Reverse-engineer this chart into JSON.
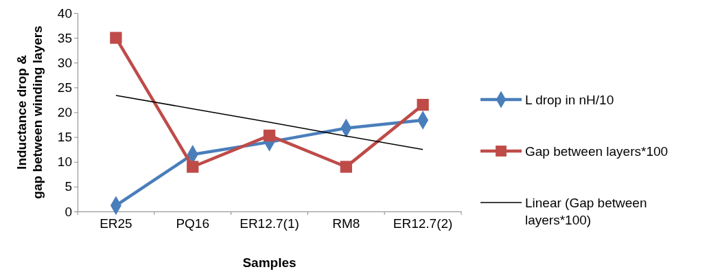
{
  "chart_data": {
    "type": "line",
    "xlabel": "Samples",
    "ylabel": "Inductance drop & gap between winding layers",
    "categories": [
      "ER25",
      "PQ16",
      "ER12.7(1)",
      "RM8",
      "ER12.7(2)"
    ],
    "ylim": [
      0,
      40
    ],
    "yticks": [
      0,
      5,
      10,
      15,
      20,
      25,
      30,
      35,
      40
    ],
    "grid": false,
    "legend": "right",
    "series": [
      {
        "name": "L drop in nH/10",
        "color": "#4a7ebb",
        "marker": "diamond",
        "values": [
          1.2,
          11.5,
          14,
          16.8,
          18.4
        ]
      },
      {
        "name": "Gap between layers*100",
        "color": "#be4b48",
        "marker": "square",
        "values": [
          35,
          9,
          15.3,
          9,
          21.5
        ]
      },
      {
        "name": "Linear (Gap between layers*100)",
        "type": "line",
        "color": "#000000",
        "marker": "none",
        "values": [
          23.4,
          20.7,
          18,
          15.2,
          12.5
        ]
      }
    ]
  }
}
